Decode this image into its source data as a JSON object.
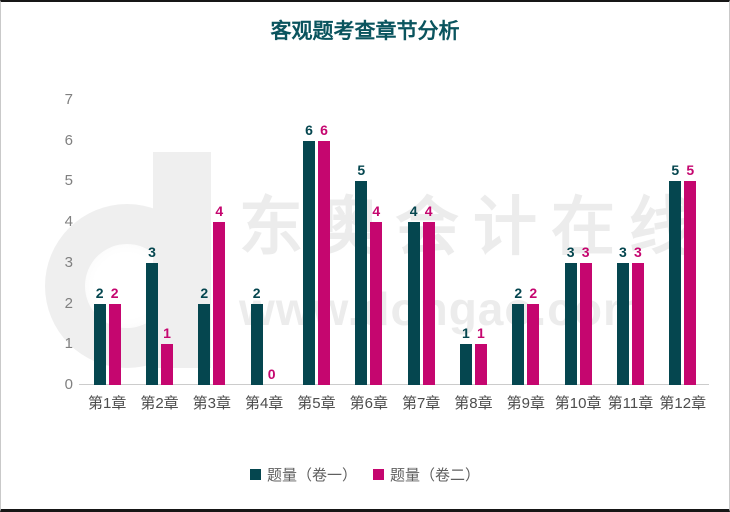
{
  "watermark": {
    "brand": "东奥会计在线",
    "url": "www.dongao.com"
  },
  "colors": {
    "series1": "#05464F",
    "series2": "#C5066F",
    "title_text": "#0A545E",
    "ytick_text": "#808080",
    "xtick_text": "#4D4D4D",
    "legend_text": "#5F5F5F",
    "baseline": "#CCCCCC",
    "watermark": "#ECECEC"
  },
  "chart_data": {
    "type": "bar",
    "title": "客观题考查章节分析",
    "categories": [
      "第1章",
      "第2章",
      "第3章",
      "第4章",
      "第5章",
      "第6章",
      "第7章",
      "第8章",
      "第9章",
      "第10章",
      "第11章",
      "第12章"
    ],
    "series": [
      {
        "name": "题量（卷一）",
        "color": "#05464F",
        "values": [
          2,
          3,
          2,
          2,
          6,
          5,
          4,
          1,
          2,
          3,
          3,
          5
        ]
      },
      {
        "name": "题量（卷二）",
        "color": "#C5066F",
        "values": [
          2,
          1,
          4,
          0,
          6,
          4,
          4,
          1,
          2,
          3,
          3,
          5
        ]
      }
    ],
    "xlabel": "",
    "ylabel": "",
    "ylim": [
      0,
      7
    ],
    "yticks": [
      0,
      1,
      2,
      3,
      4,
      5,
      6,
      7
    ],
    "grid": false,
    "legend_position": "bottom",
    "value_labels": true
  }
}
